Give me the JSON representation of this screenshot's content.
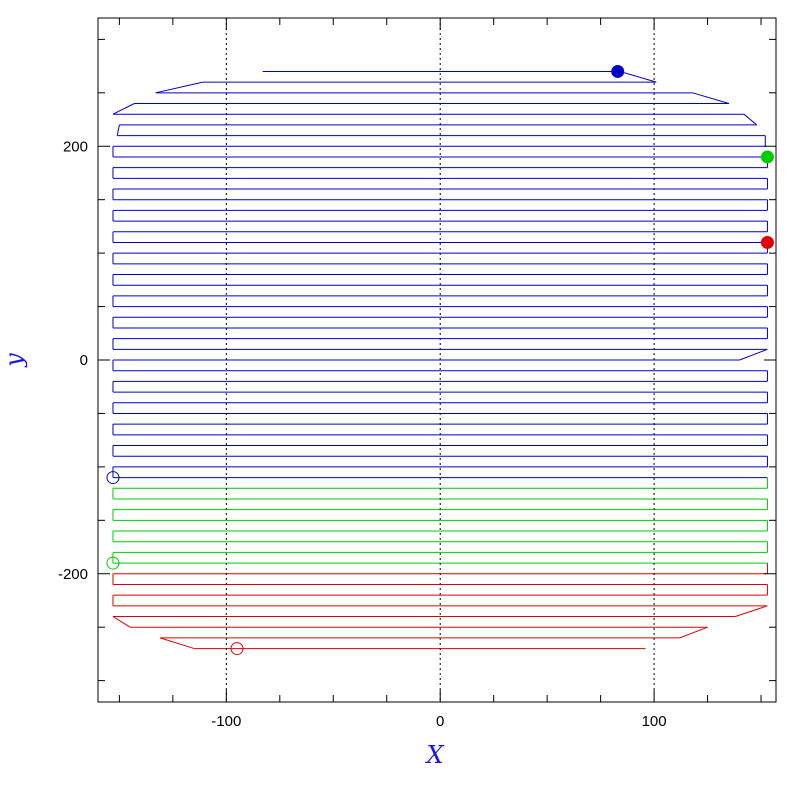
{
  "chart_data": {
    "type": "line",
    "title": "",
    "xlabel": "X",
    "ylabel": "y",
    "xlim": [
      -160,
      157
    ],
    "ylim": [
      -320,
      320
    ],
    "x_ticks": [
      {
        "value": -100,
        "label": "-100"
      },
      {
        "value": 0,
        "label": "0"
      },
      {
        "value": 100,
        "label": "100"
      }
    ],
    "y_ticks": [
      {
        "value": -200,
        "label": "-200"
      },
      {
        "value": 0,
        "label": "0"
      },
      {
        "value": 200,
        "label": "200"
      }
    ],
    "reference_lines_x": [
      -100,
      0,
      100
    ],
    "grid": false,
    "raster": {
      "row_spacing": 10,
      "colors": {
        "red": "#e00000",
        "green": "#00cc00",
        "blue": "#0000cc"
      },
      "rows": [
        {
          "y": 270,
          "x_left": -83,
          "x_right": 84,
          "color": "blue"
        },
        {
          "y": 260,
          "x_left": -111,
          "x_right": 101,
          "color": "blue"
        },
        {
          "y": 250,
          "x_left": -133,
          "x_right": 118,
          "color": "blue"
        },
        {
          "y": 240,
          "x_left": -143,
          "x_right": 135,
          "color": "blue"
        },
        {
          "y": 230,
          "x_left": -153,
          "x_right": 142,
          "color": "blue"
        },
        {
          "y": 220,
          "x_left": -150,
          "x_right": 148,
          "color": "blue"
        },
        {
          "y": 210,
          "x_left": -151,
          "x_right": 152,
          "color": "blue"
        },
        {
          "y": 200,
          "x_left": -153,
          "x_right": 152,
          "color": "blue"
        },
        {
          "y": 190,
          "x_left": -153,
          "x_right": 153,
          "color": "blue"
        },
        {
          "y": 180,
          "x_left": -153,
          "x_right": 153,
          "color": "blue"
        },
        {
          "y": 170,
          "x_left": -153,
          "x_right": 153,
          "color": "blue"
        },
        {
          "y": 160,
          "x_left": -153,
          "x_right": 153,
          "color": "blue"
        },
        {
          "y": 150,
          "x_left": -153,
          "x_right": 153,
          "color": "blue"
        },
        {
          "y": 140,
          "x_left": -153,
          "x_right": 153,
          "color": "blue"
        },
        {
          "y": 130,
          "x_left": -153,
          "x_right": 153,
          "color": "blue"
        },
        {
          "y": 120,
          "x_left": -153,
          "x_right": 153,
          "color": "blue"
        },
        {
          "y": 110,
          "x_left": -153,
          "x_right": 153,
          "color": "blue"
        },
        {
          "y": 100,
          "x_left": -153,
          "x_right": 153,
          "color": "blue"
        },
        {
          "y": 90,
          "x_left": -153,
          "x_right": 153,
          "color": "blue"
        },
        {
          "y": 80,
          "x_left": -153,
          "x_right": 153,
          "color": "blue"
        },
        {
          "y": 70,
          "x_left": -153,
          "x_right": 153,
          "color": "blue"
        },
        {
          "y": 60,
          "x_left": -153,
          "x_right": 153,
          "color": "blue"
        },
        {
          "y": 50,
          "x_left": -153,
          "x_right": 153,
          "color": "blue"
        },
        {
          "y": 40,
          "x_left": -153,
          "x_right": 153,
          "color": "blue"
        },
        {
          "y": 30,
          "x_left": -153,
          "x_right": 153,
          "color": "blue"
        },
        {
          "y": 20,
          "x_left": -153,
          "x_right": 153,
          "color": "blue"
        },
        {
          "y": 10,
          "x_left": -153,
          "x_right": 153,
          "color": "blue"
        },
        {
          "y": 0,
          "x_left": -153,
          "x_right": 140,
          "color": "blue"
        },
        {
          "y": -10,
          "x_left": -153,
          "x_right": 153,
          "color": "blue"
        },
        {
          "y": -20,
          "x_left": -153,
          "x_right": 153,
          "color": "blue"
        },
        {
          "y": -30,
          "x_left": -153,
          "x_right": 153,
          "color": "blue"
        },
        {
          "y": -40,
          "x_left": -153,
          "x_right": 153,
          "color": "blue"
        },
        {
          "y": -50,
          "x_left": -153,
          "x_right": 153,
          "color": "blue"
        },
        {
          "y": -60,
          "x_left": -153,
          "x_right": 153,
          "color": "blue"
        },
        {
          "y": -70,
          "x_left": -153,
          "x_right": 153,
          "color": "blue"
        },
        {
          "y": -80,
          "x_left": -153,
          "x_right": 153,
          "color": "blue"
        },
        {
          "y": -90,
          "x_left": -153,
          "x_right": 153,
          "color": "blue"
        },
        {
          "y": -100,
          "x_left": -153,
          "x_right": 153,
          "color": "blue"
        },
        {
          "y": -110,
          "x_left": -153,
          "x_right": 153,
          "color": "blue"
        },
        {
          "y": -120,
          "x_left": -153,
          "x_right": 153,
          "color": "green"
        },
        {
          "y": -130,
          "x_left": -153,
          "x_right": 153,
          "color": "green"
        },
        {
          "y": -140,
          "x_left": -153,
          "x_right": 153,
          "color": "green"
        },
        {
          "y": -150,
          "x_left": -153,
          "x_right": 153,
          "color": "green"
        },
        {
          "y": -160,
          "x_left": -153,
          "x_right": 153,
          "color": "green"
        },
        {
          "y": -170,
          "x_left": -153,
          "x_right": 153,
          "color": "green"
        },
        {
          "y": -180,
          "x_left": -153,
          "x_right": 153,
          "color": "green"
        },
        {
          "y": -190,
          "x_left": -153,
          "x_right": 153,
          "color": "green"
        },
        {
          "y": -200,
          "x_left": -153,
          "x_right": 153,
          "color": "red"
        },
        {
          "y": -210,
          "x_left": -153,
          "x_right": 153,
          "color": "red"
        },
        {
          "y": -220,
          "x_left": -153,
          "x_right": 153,
          "color": "red"
        },
        {
          "y": -230,
          "x_left": -153,
          "x_right": 153,
          "color": "red"
        },
        {
          "y": -240,
          "x_left": -153,
          "x_right": 138,
          "color": "red"
        },
        {
          "y": -250,
          "x_left": -145,
          "x_right": 125,
          "color": "red"
        },
        {
          "y": -260,
          "x_left": -131,
          "x_right": 112,
          "color": "red"
        },
        {
          "y": -270,
          "x_left": -115,
          "x_right": 96,
          "color": "red"
        }
      ]
    },
    "series": [
      {
        "color": "#e00000",
        "start": {
          "x": -95,
          "y": -270
        },
        "end": {
          "x": 153,
          "y": 110
        }
      },
      {
        "color": "#00cc00",
        "start": {
          "x": -153,
          "y": -190
        },
        "end": {
          "x": 153,
          "y": 190
        }
      },
      {
        "color": "#0000cc",
        "start": {
          "x": -153,
          "y": -110
        },
        "end": {
          "x": 83,
          "y": 270
        }
      }
    ]
  }
}
